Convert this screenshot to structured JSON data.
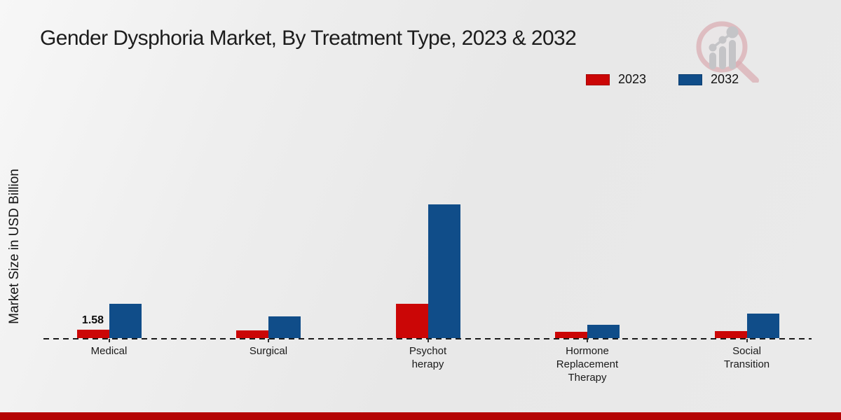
{
  "title": "Gender Dysphoria Market, By Treatment Type, 2023 & 2032",
  "ylabel": "Market Size in USD Billion",
  "legend": {
    "items": [
      {
        "label": "2023",
        "color": "#cb0606"
      },
      {
        "label": "2032",
        "color": "#104d89"
      }
    ]
  },
  "colors": {
    "bar_2023": "#cb0606",
    "bar_2032": "#104d89",
    "background": "#ebebeb",
    "axis": "#1a1a1a",
    "footer_band": "#b40404",
    "watermark_pink": "#d39099",
    "watermark_gray": "#a6a6ac"
  },
  "footer": {
    "color": "#b40404"
  },
  "watermark": {
    "icon": "magnifier-bar-chart-logo"
  },
  "chart_data": {
    "type": "bar",
    "title": "Gender Dysphoria Market, By Treatment Type, 2023 & 2032",
    "xlabel": "",
    "ylabel": "Market Size in USD Billion",
    "categories": [
      "Medical",
      "Surgical",
      "Psychotherapy",
      "Hormone Replacement Therapy",
      "Social Transition"
    ],
    "category_label_lines": [
      [
        "Medical"
      ],
      [
        "Surgical"
      ],
      [
        "Psychot",
        "herapy"
      ],
      [
        "Hormone",
        "Replacement",
        "Therapy"
      ],
      [
        "Social",
        "Transition"
      ]
    ],
    "series": [
      {
        "name": "2023",
        "color": "#cb0606",
        "values": [
          1.58,
          1.51,
          6.45,
          1.19,
          1.32
        ]
      },
      {
        "name": "2032",
        "color": "#104d89",
        "values": [
          6.4,
          4.15,
          25.2,
          2.5,
          4.55
        ]
      }
    ],
    "data_labels": [
      {
        "series_index": 0,
        "category_index": 0,
        "text": "1.58"
      }
    ],
    "ylim": [
      0,
      26
    ],
    "grid": false,
    "legend_position": "top-right",
    "baseline_style": "dashed"
  }
}
